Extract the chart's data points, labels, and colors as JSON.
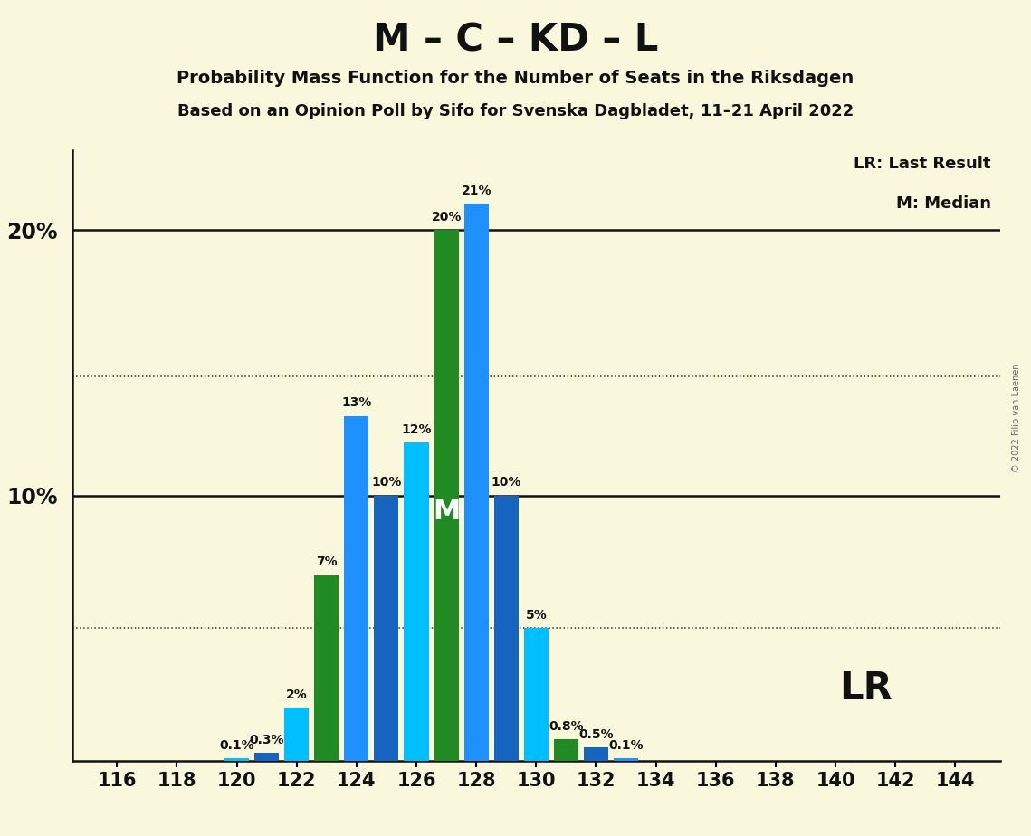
{
  "title": "M – C – KD – L",
  "subtitle1": "Probability Mass Function for the Number of Seats in the Riksdagen",
  "subtitle2": "Based on an Opinion Poll by Sifo for Svenska Dagbladet, 11–21 April 2022",
  "copyright": "© 2022 Filip van Laenen",
  "x_ticks": [
    116,
    118,
    120,
    122,
    124,
    126,
    128,
    130,
    132,
    134,
    136,
    138,
    140,
    142,
    144
  ],
  "all_seats": [
    116,
    117,
    118,
    119,
    120,
    121,
    122,
    123,
    124,
    125,
    126,
    127,
    128,
    129,
    130,
    131,
    132,
    133,
    134,
    135,
    136,
    137,
    138,
    139,
    140,
    141,
    142,
    143,
    144
  ],
  "values": [
    0.0,
    0.0,
    0.0,
    0.0,
    0.1,
    0.3,
    2.0,
    7.0,
    13.0,
    10.0,
    12.0,
    20.0,
    21.0,
    10.0,
    5.0,
    0.8,
    0.5,
    0.1,
    0.0,
    0.0,
    0.0,
    0.0,
    0.0,
    0.0,
    0.0,
    0.0,
    0.0,
    0.0,
    0.0
  ],
  "colors": [
    "#1E90FF",
    "#1E90FF",
    "#1E90FF",
    "#1E90FF",
    "#00BFFF",
    "#1565C0",
    "#00BFFF",
    "#1F8B22",
    "#1E90FF",
    "#1565C0",
    "#00BFFF",
    "#1F8B22",
    "#1E90FF",
    "#1565C0",
    "#00BFFF",
    "#1F8B22",
    "#1565C0",
    "#1E90FF",
    "#1E90FF",
    "#1E90FF",
    "#1E90FF",
    "#1E90FF",
    "#1E90FF",
    "#1E90FF",
    "#1E90FF",
    "#1E90FF",
    "#1E90FF",
    "#1E90FF",
    "#1E90FF"
  ],
  "median_seat_index": 11,
  "background_color": "#FAF8DC",
  "ylim_max": 23,
  "bar_width": 0.82,
  "solid_lines": [
    10,
    20
  ],
  "dotted_lines": [
    14.5,
    5.0
  ],
  "legend_lr": "LR: Last Result",
  "legend_m": "M: Median",
  "lr_label": "LR",
  "median_label": "M",
  "title_fontsize": 30,
  "subtitle_fontsize": 14,
  "tick_fontsize": 15,
  "ytick_fontsize": 17,
  "bar_label_fontsize": 10,
  "lr_fontsize": 30,
  "legend_fontsize": 13
}
